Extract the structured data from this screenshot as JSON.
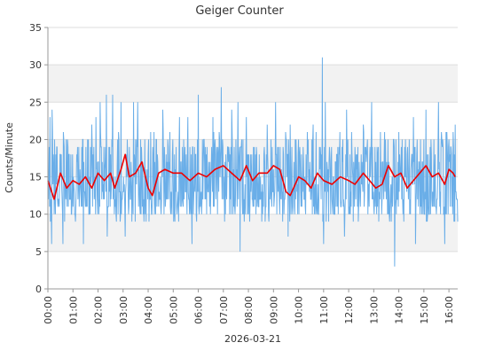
{
  "chart_data": {
    "type": "line",
    "title": "Geiger Counter",
    "xlabel": "2026-03-21",
    "ylabel": "Counts/Minute",
    "ylim": [
      0,
      35
    ],
    "xlim_hours": [
      0,
      16.35
    ],
    "y_ticks": [
      0,
      5,
      10,
      15,
      20,
      25,
      30,
      35
    ],
    "x_tick_labels": [
      "00:00",
      "01:00",
      "02:00",
      "03:00",
      "04:00",
      "05:00",
      "06:00",
      "07:00",
      "08:00",
      "09:00",
      "10:00",
      "11:00",
      "12:00",
      "13:00",
      "14:00",
      "15:00",
      "16:00"
    ],
    "grid": "horizontal alternating bands",
    "series": [
      {
        "name": "",
        "role": "raw counts per minute",
        "color": "#6aaee8",
        "baseline": 15,
        "typical_low": 10,
        "typical_high": 20,
        "notable_points": [
          {
            "time": "00:05",
            "value": 23
          },
          {
            "time": "00:09",
            "value": 6
          },
          {
            "time": "00:10",
            "value": 24
          },
          {
            "time": "00:29",
            "value": 18
          },
          {
            "time": "00:36",
            "value": 6
          },
          {
            "time": "00:39",
            "value": 19
          },
          {
            "time": "01:25",
            "value": 6
          },
          {
            "time": "01:45",
            "value": 22
          },
          {
            "time": "01:55",
            "value": 23
          },
          {
            "time": "02:05",
            "value": 25
          },
          {
            "time": "02:20",
            "value": 26
          },
          {
            "time": "02:22",
            "value": 7
          },
          {
            "time": "02:35",
            "value": 26
          },
          {
            "time": "02:55",
            "value": 25
          },
          {
            "time": "03:05",
            "value": 7
          },
          {
            "time": "03:25",
            "value": 25
          },
          {
            "time": "03:35",
            "value": 25
          },
          {
            "time": "04:35",
            "value": 24
          },
          {
            "time": "05:15",
            "value": 23
          },
          {
            "time": "05:35",
            "value": 23
          },
          {
            "time": "05:45",
            "value": 6
          },
          {
            "time": "06:00",
            "value": 26
          },
          {
            "time": "06:35",
            "value": 23
          },
          {
            "time": "06:55",
            "value": 27
          },
          {
            "time": "07:20",
            "value": 24
          },
          {
            "time": "07:35",
            "value": 25
          },
          {
            "time": "07:40",
            "value": 5
          },
          {
            "time": "07:55",
            "value": 23
          },
          {
            "time": "08:45",
            "value": 22
          },
          {
            "time": "09:05",
            "value": 25
          },
          {
            "time": "09:35",
            "value": 7
          },
          {
            "time": "09:40",
            "value": 22
          },
          {
            "time": "10:35",
            "value": 22
          },
          {
            "time": "10:57",
            "value": 31
          },
          {
            "time": "11:00",
            "value": 6
          },
          {
            "time": "11:04",
            "value": 25
          },
          {
            "time": "11:50",
            "value": 7
          },
          {
            "time": "11:55",
            "value": 24
          },
          {
            "time": "12:35",
            "value": 22
          },
          {
            "time": "12:55",
            "value": 25
          },
          {
            "time": "13:50",
            "value": 3
          },
          {
            "time": "14:00",
            "value": 21
          },
          {
            "time": "14:35",
            "value": 23
          },
          {
            "time": "14:40",
            "value": 6
          },
          {
            "time": "15:05",
            "value": 24
          },
          {
            "time": "15:35",
            "value": 25
          },
          {
            "time": "15:50",
            "value": 6
          },
          {
            "time": "16:15",
            "value": 22
          }
        ]
      },
      {
        "name": "",
        "role": "moving average",
        "color": "#ee0000",
        "points": [
          {
            "time": "00:00",
            "value": 14.5
          },
          {
            "time": "00:15",
            "value": 12.0
          },
          {
            "time": "00:30",
            "value": 15.5
          },
          {
            "time": "00:45",
            "value": 13.5
          },
          {
            "time": "01:00",
            "value": 14.5
          },
          {
            "time": "01:15",
            "value": 14.0
          },
          {
            "time": "01:30",
            "value": 15.0
          },
          {
            "time": "01:45",
            "value": 13.5
          },
          {
            "time": "02:00",
            "value": 15.5
          },
          {
            "time": "02:15",
            "value": 14.5
          },
          {
            "time": "02:30",
            "value": 15.5
          },
          {
            "time": "02:40",
            "value": 13.5
          },
          {
            "time": "02:55",
            "value": 16.0
          },
          {
            "time": "03:05",
            "value": 18.0
          },
          {
            "time": "03:15",
            "value": 15.0
          },
          {
            "time": "03:30",
            "value": 15.5
          },
          {
            "time": "03:45",
            "value": 17.0
          },
          {
            "time": "04:00",
            "value": 13.5
          },
          {
            "time": "04:10",
            "value": 12.5
          },
          {
            "time": "04:25",
            "value": 15.5
          },
          {
            "time": "04:40",
            "value": 16.0
          },
          {
            "time": "05:00",
            "value": 15.5
          },
          {
            "time": "05:20",
            "value": 15.5
          },
          {
            "time": "05:40",
            "value": 14.5
          },
          {
            "time": "06:00",
            "value": 15.5
          },
          {
            "time": "06:20",
            "value": 15.0
          },
          {
            "time": "06:40",
            "value": 16.0
          },
          {
            "time": "07:00",
            "value": 16.5
          },
          {
            "time": "07:20",
            "value": 15.5
          },
          {
            "time": "07:40",
            "value": 14.5
          },
          {
            "time": "07:55",
            "value": 16.5
          },
          {
            "time": "08:10",
            "value": 14.5
          },
          {
            "time": "08:25",
            "value": 15.5
          },
          {
            "time": "08:45",
            "value": 15.5
          },
          {
            "time": "09:00",
            "value": 16.5
          },
          {
            "time": "09:15",
            "value": 16.0
          },
          {
            "time": "09:30",
            "value": 13.0
          },
          {
            "time": "09:40",
            "value": 12.5
          },
          {
            "time": "10:00",
            "value": 15.0
          },
          {
            "time": "10:15",
            "value": 14.5
          },
          {
            "time": "10:30",
            "value": 13.5
          },
          {
            "time": "10:45",
            "value": 15.5
          },
          {
            "time": "11:00",
            "value": 14.5
          },
          {
            "time": "11:20",
            "value": 14.0
          },
          {
            "time": "11:40",
            "value": 15.0
          },
          {
            "time": "12:00",
            "value": 14.5
          },
          {
            "time": "12:15",
            "value": 14.0
          },
          {
            "time": "12:35",
            "value": 15.5
          },
          {
            "time": "12:50",
            "value": 14.5
          },
          {
            "time": "13:05",
            "value": 13.5
          },
          {
            "time": "13:20",
            "value": 14.0
          },
          {
            "time": "13:35",
            "value": 16.5
          },
          {
            "time": "13:50",
            "value": 15.0
          },
          {
            "time": "14:05",
            "value": 15.5
          },
          {
            "time": "14:20",
            "value": 13.5
          },
          {
            "time": "14:35",
            "value": 14.5
          },
          {
            "time": "14:50",
            "value": 15.5
          },
          {
            "time": "15:05",
            "value": 16.5
          },
          {
            "time": "15:20",
            "value": 15.0
          },
          {
            "time": "15:35",
            "value": 15.5
          },
          {
            "time": "15:50",
            "value": 14.0
          },
          {
            "time": "16:00",
            "value": 16.0
          },
          {
            "time": "16:10",
            "value": 15.5
          },
          {
            "time": "16:15",
            "value": 15.0
          }
        ]
      }
    ]
  }
}
